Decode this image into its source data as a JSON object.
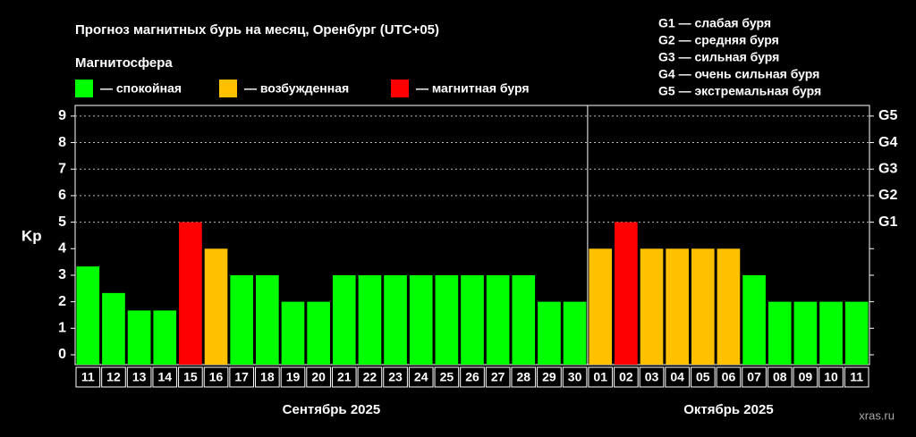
{
  "chart_data": {
    "type": "bar",
    "title": "Прогноз магнитных бурь на месяц, Оренбург (UTC+05)",
    "legend_title": "Магнитосфера",
    "legend": [
      {
        "name": "— спокойная",
        "color": "#00ff00"
      },
      {
        "name": "— возбужденная",
        "color": "#ffc000"
      },
      {
        "name": "— магнитная буря",
        "color": "#ff0000"
      }
    ],
    "storm_scale": [
      "G1 — слабая буря",
      "G2 — средняя буря",
      "G3 — сильная буря",
      "G4 — очень сильная буря",
      "G5 — экстремальная буря"
    ],
    "y_label": "Kp",
    "watermark": "xras.ru",
    "groups": [
      {
        "label": "Сентябрь 2025",
        "categories": [
          "11",
          "12",
          "13",
          "14",
          "15",
          "16",
          "17",
          "18",
          "19",
          "20",
          "21",
          "22",
          "23",
          "24",
          "25",
          "26",
          "27",
          "28",
          "29",
          "30"
        ],
        "values": [
          3.33,
          2.33,
          1.67,
          1.67,
          5,
          4,
          3,
          3,
          2,
          2,
          3,
          3,
          3,
          3,
          3,
          3,
          3,
          3,
          2,
          2
        ],
        "colors": [
          "#00ff00",
          "#00ff00",
          "#00ff00",
          "#00ff00",
          "#ff0000",
          "#ffc000",
          "#00ff00",
          "#00ff00",
          "#00ff00",
          "#00ff00",
          "#00ff00",
          "#00ff00",
          "#00ff00",
          "#00ff00",
          "#00ff00",
          "#00ff00",
          "#00ff00",
          "#00ff00",
          "#00ff00",
          "#00ff00"
        ]
      },
      {
        "label": "Октябрь 2025",
        "categories": [
          "01",
          "02",
          "03",
          "04",
          "05",
          "06",
          "07",
          "08",
          "09",
          "10",
          "11"
        ],
        "values": [
          4,
          5,
          4,
          4,
          4,
          4,
          3,
          2,
          2,
          2,
          2
        ],
        "colors": [
          "#ffc000",
          "#ff0000",
          "#ffc000",
          "#ffc000",
          "#ffc000",
          "#ffc000",
          "#00ff00",
          "#00ff00",
          "#00ff00",
          "#00ff00",
          "#00ff00"
        ]
      }
    ],
    "ylim": [
      -0.37,
      9.4
    ],
    "yticks": [
      0,
      1,
      2,
      3,
      4,
      5,
      6,
      7,
      8,
      9
    ],
    "y2ticks": [
      {
        "value": 5,
        "label": "G1"
      },
      {
        "value": 6,
        "label": "G2"
      },
      {
        "value": 7,
        "label": "G3"
      },
      {
        "value": 8,
        "label": "G4"
      },
      {
        "value": 9,
        "label": "G5"
      }
    ]
  }
}
